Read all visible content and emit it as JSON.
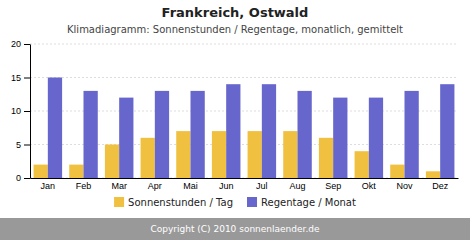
{
  "chart_data": {
    "type": "bar",
    "title": "Frankreich, Ostwald",
    "subtitle": "Klimadiagramm: Sonnenstunden / Regentage, monatlich, gemittelt",
    "categories": [
      "Jan",
      "Feb",
      "Mar",
      "Apr",
      "Mai",
      "Jun",
      "Jul",
      "Aug",
      "Sep",
      "Okt",
      "Nov",
      "Dez"
    ],
    "series": [
      {
        "name": "Sonnenstunden / Tag",
        "color": "#f0c040",
        "values": [
          2,
          2,
          5,
          6,
          7,
          7,
          7,
          7,
          6,
          4,
          2,
          1
        ]
      },
      {
        "name": "Regentage / Monat",
        "color": "#6666cc",
        "values": [
          15,
          13,
          12,
          13,
          13,
          14,
          14,
          13,
          12,
          12,
          13,
          14
        ]
      }
    ],
    "ylim": [
      0,
      20
    ],
    "yticks": [
      0,
      5,
      10,
      15,
      20
    ],
    "grid": true,
    "legend": "bottom",
    "annotations": [
      "Copyright (C) 2010 sonnenlaender.de"
    ]
  }
}
